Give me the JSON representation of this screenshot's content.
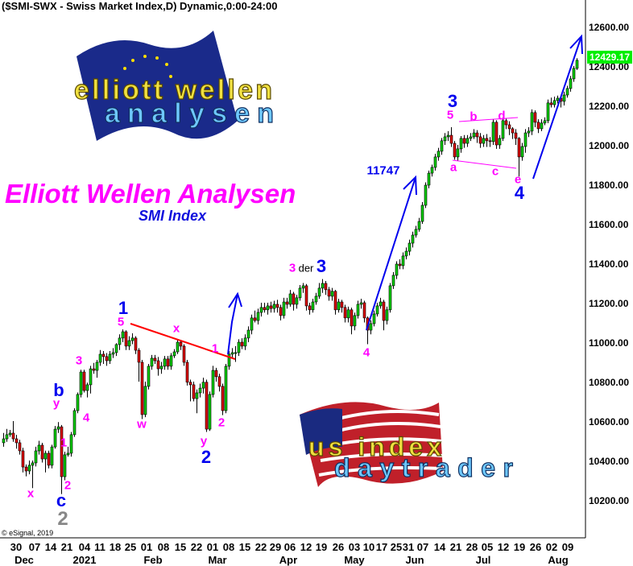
{
  "header": {
    "title": "($SMI-SWX - Swiss Market Index,D) Dynamic,0:00-24:00"
  },
  "footer": {
    "copyright": "© eSignal, 2019"
  },
  "overlay": {
    "headline": "Elliott Wellen Analysen",
    "subheadline": "SMI Index"
  },
  "logos": {
    "top": {
      "line1": "elliott wellen",
      "line2": "analysen"
    },
    "bottom": {
      "line1": "us index",
      "line2": "daytrader"
    }
  },
  "colors": {
    "up": "#00cc00",
    "down": "#dd0000",
    "wave_major": "#0000ee",
    "wave_minor": "#ff00ff",
    "trendline": "#ff0000",
    "last_price_bg": "#00ee00"
  },
  "chart_data": {
    "type": "candlestick",
    "title": "($SMI-SWX - Swiss Market Index,D) Dynamic,0:00-24:00",
    "ylim": [
      10040,
      12735
    ],
    "y_ticks": [
      "12600.00",
      "12400.00",
      "12200.00",
      "12000.00",
      "11800.00",
      "11600.00",
      "11400.00",
      "11200.00",
      "11000.00",
      "10800.00",
      "10600.00",
      "10400.00",
      "10200.00"
    ],
    "last_price": "12429.17",
    "x_ticks": [
      "30",
      "07",
      "14",
      "21",
      "04",
      "11",
      "18",
      "25",
      "01",
      "08",
      "15",
      "22",
      "01",
      "08",
      "15",
      "22",
      "29",
      "06",
      "12",
      "19",
      "26",
      "03",
      "10",
      "17",
      "25",
      "31",
      "07",
      "14",
      "21",
      "28",
      "05",
      "12",
      "19",
      "26",
      "02",
      "09"
    ],
    "x_months": [
      "Dec",
      "2021",
      "Feb",
      "Mar",
      "Apr",
      "May",
      "Jun",
      "Jul",
      "Aug"
    ],
    "ohlc": [
      [
        10490,
        10540,
        10470,
        10510
      ],
      [
        10510,
        10560,
        10495,
        10531
      ],
      [
        10531,
        10555,
        10520,
        10539
      ],
      [
        10539,
        10600,
        10495,
        10510
      ],
      [
        10510,
        10530,
        10460,
        10490
      ],
      [
        10490,
        10505,
        10430,
        10449
      ],
      [
        10449,
        10465,
        10340,
        10367
      ],
      [
        10367,
        10380,
        10320,
        10347
      ],
      [
        10347,
        10400,
        10330,
        10376
      ],
      [
        10376,
        10400,
        10260,
        10388
      ],
      [
        10388,
        10470,
        10370,
        10449
      ],
      [
        10449,
        10500,
        10430,
        10478
      ],
      [
        10478,
        10490,
        10390,
        10408
      ],
      [
        10408,
        10450,
        10340,
        10437
      ],
      [
        10437,
        10450,
        10360,
        10376
      ],
      [
        10376,
        10480,
        10360,
        10469
      ],
      [
        10469,
        10575,
        10460,
        10559
      ],
      [
        10559,
        10595,
        10540,
        10571
      ],
      [
        10571,
        10580,
        10230,
        10318
      ],
      [
        10318,
        10445,
        10300,
        10429
      ],
      [
        10429,
        10470,
        10420,
        10437
      ],
      [
        10437,
        10545,
        10420,
        10531
      ],
      [
        10531,
        10665,
        10520,
        10653
      ],
      [
        10653,
        10745,
        10640,
        10735
      ],
      [
        10735,
        10860,
        10720,
        10849
      ],
      [
        10849,
        10860,
        10745,
        10755
      ],
      [
        10755,
        10795,
        10720,
        10784
      ],
      [
        10784,
        10880,
        10740,
        10865
      ],
      [
        10865,
        10895,
        10840,
        10857
      ],
      [
        10857,
        10910,
        10820,
        10898
      ],
      [
        10898,
        10960,
        10880,
        10939
      ],
      [
        10939,
        10955,
        10890,
        10927
      ],
      [
        10927,
        10945,
        10880,
        10906
      ],
      [
        10906,
        10955,
        10890,
        10939
      ],
      [
        10939,
        10970,
        10920,
        10947
      ],
      [
        10947,
        10995,
        10930,
        10988
      ],
      [
        10988,
        11040,
        10960,
        11021
      ],
      [
        11021,
        11065,
        11000,
        11053
      ],
      [
        11053,
        11060,
        10960,
        10980
      ],
      [
        10980,
        11030,
        10960,
        11008
      ],
      [
        11008,
        11045,
        10990,
        11021
      ],
      [
        11021,
        11030,
        10940,
        10959
      ],
      [
        10959,
        10970,
        10800,
        10898
      ],
      [
        10898,
        10910,
        10610,
        10633
      ],
      [
        10633,
        10800,
        10620,
        10776
      ],
      [
        10776,
        10890,
        10760,
        10878
      ],
      [
        10878,
        10935,
        10860,
        10919
      ],
      [
        10919,
        10935,
        10890,
        10906
      ],
      [
        10906,
        10925,
        10830,
        10865
      ],
      [
        10865,
        10900,
        10840,
        10878
      ],
      [
        10878,
        10930,
        10860,
        10915
      ],
      [
        10915,
        10930,
        10860,
        10878
      ],
      [
        10878,
        10945,
        10860,
        10931
      ],
      [
        10931,
        10965,
        10920,
        10951
      ],
      [
        10951,
        11015,
        10940,
        11000
      ],
      [
        11000,
        11010,
        10960,
        10980
      ],
      [
        10980,
        10990,
        10880,
        10898
      ],
      [
        10898,
        10910,
        10780,
        10797
      ],
      [
        10797,
        10810,
        10700,
        10784
      ],
      [
        10784,
        10800,
        10700,
        10714
      ],
      [
        10714,
        10760,
        10640,
        10743
      ],
      [
        10743,
        10790,
        10720,
        10767
      ],
      [
        10767,
        10820,
        10740,
        10797
      ],
      [
        10797,
        10810,
        10545,
        10559
      ],
      [
        10559,
        10750,
        10550,
        10735
      ],
      [
        10735,
        10880,
        10720,
        10857
      ],
      [
        10857,
        10870,
        10800,
        10825
      ],
      [
        10825,
        10840,
        10750,
        10776
      ],
      [
        10776,
        10790,
        10630,
        10653
      ],
      [
        10653,
        10890,
        10640,
        10878
      ],
      [
        10878,
        10955,
        10860,
        10939
      ],
      [
        10939,
        10970,
        10920,
        10947
      ],
      [
        10947,
        10980,
        10900,
        10947
      ],
      [
        10947,
        11015,
        10930,
        11000
      ],
      [
        11000,
        11020,
        10965,
        10980
      ],
      [
        10980,
        11040,
        10960,
        11021
      ],
      [
        11021,
        11080,
        11000,
        11061
      ],
      [
        11061,
        11140,
        11040,
        11123
      ],
      [
        11123,
        11160,
        11100,
        11110
      ],
      [
        11110,
        11170,
        11090,
        11151
      ],
      [
        11151,
        11200,
        11130,
        11176
      ],
      [
        11176,
        11200,
        11150,
        11164
      ],
      [
        11164,
        11200,
        11140,
        11184
      ],
      [
        11184,
        11205,
        11150,
        11171
      ],
      [
        11171,
        11210,
        11150,
        11192
      ],
      [
        11192,
        11215,
        11150,
        11176
      ],
      [
        11176,
        11190,
        11110,
        11135
      ],
      [
        11135,
        11225,
        11120,
        11204
      ],
      [
        11204,
        11225,
        11170,
        11192
      ],
      [
        11192,
        11265,
        11180,
        11245
      ],
      [
        11245,
        11255,
        11160,
        11192
      ],
      [
        11192,
        11240,
        11170,
        11225
      ],
      [
        11225,
        11290,
        11210,
        11274
      ],
      [
        11274,
        11300,
        11250,
        11286
      ],
      [
        11286,
        11295,
        11160,
        11184
      ],
      [
        11184,
        11200,
        11140,
        11164
      ],
      [
        11164,
        11220,
        11150,
        11204
      ],
      [
        11204,
        11250,
        11190,
        11233
      ],
      [
        11233,
        11300,
        11220,
        11274
      ],
      [
        11274,
        11320,
        11250,
        11298
      ],
      [
        11298,
        11310,
        11240,
        11266
      ],
      [
        11266,
        11280,
        11210,
        11233
      ],
      [
        11233,
        11275,
        11210,
        11258
      ],
      [
        11258,
        11265,
        11140,
        11164
      ],
      [
        11164,
        11220,
        11150,
        11204
      ],
      [
        11204,
        11215,
        11150,
        11176
      ],
      [
        11176,
        11190,
        11100,
        11123
      ],
      [
        11123,
        11180,
        11100,
        11164
      ],
      [
        11164,
        11175,
        11040,
        11082
      ],
      [
        11082,
        11150,
        11060,
        11135
      ],
      [
        11135,
        11210,
        11120,
        11192
      ],
      [
        11192,
        11220,
        11170,
        11200
      ],
      [
        11200,
        11210,
        11100,
        11123
      ],
      [
        11123,
        11130,
        10990,
        11061
      ],
      [
        11061,
        11110,
        11040,
        11094
      ],
      [
        11094,
        11160,
        11080,
        11143
      ],
      [
        11143,
        11200,
        11130,
        11184
      ],
      [
        11184,
        11225,
        11170,
        11204
      ],
      [
        11204,
        11215,
        11060,
        11110
      ],
      [
        11110,
        11180,
        11090,
        11164
      ],
      [
        11164,
        11300,
        11150,
        11286
      ],
      [
        11286,
        11355,
        11270,
        11339
      ],
      [
        11339,
        11410,
        11320,
        11396
      ],
      [
        11396,
        11420,
        11370,
        11388
      ],
      [
        11388,
        11455,
        11370,
        11437
      ],
      [
        11437,
        11480,
        11420,
        11461
      ],
      [
        11461,
        11520,
        11440,
        11502
      ],
      [
        11502,
        11560,
        11480,
        11543
      ],
      [
        11543,
        11590,
        11530,
        11572
      ],
      [
        11572,
        11630,
        11560,
        11612
      ],
      [
        11612,
        11710,
        11600,
        11694
      ],
      [
        11694,
        11810,
        11680,
        11796
      ],
      [
        11796,
        11870,
        11780,
        11857
      ],
      [
        11857,
        11900,
        11840,
        11886
      ],
      [
        11886,
        11955,
        11870,
        11939
      ],
      [
        11939,
        11985,
        11920,
        11968
      ],
      [
        11968,
        12035,
        11950,
        12021
      ],
      [
        12021,
        12060,
        12000,
        12041
      ],
      [
        12041,
        12070,
        12020,
        12049
      ],
      [
        12049,
        12090,
        11990,
        12008
      ],
      [
        12008,
        12020,
        11925,
        11939
      ],
      [
        11939,
        12000,
        11920,
        11980
      ],
      [
        11980,
        12045,
        11960,
        12033
      ],
      [
        12033,
        12050,
        11985,
        12008
      ],
      [
        12008,
        12050,
        11990,
        12033
      ],
      [
        12033,
        12060,
        12020,
        12041
      ],
      [
        12041,
        12080,
        12030,
        12061
      ],
      [
        12061,
        12075,
        12010,
        12041
      ],
      [
        12041,
        12060,
        11985,
        12008
      ],
      [
        12008,
        12050,
        11990,
        12033
      ],
      [
        12033,
        12055,
        11990,
        12021
      ],
      [
        12021,
        12040,
        11990,
        12017
      ],
      [
        12017,
        12130,
        12000,
        12115
      ],
      [
        12115,
        12125,
        11980,
        12000
      ],
      [
        12000,
        12050,
        11980,
        12033
      ],
      [
        12033,
        12140,
        12020,
        12123
      ],
      [
        12123,
        12135,
        12080,
        12102
      ],
      [
        12102,
        12120,
        12050,
        12082
      ],
      [
        12082,
        12090,
        12030,
        12061
      ],
      [
        12061,
        12080,
        12000,
        12033
      ],
      [
        12033,
        12040,
        11840,
        11939
      ],
      [
        11939,
        12010,
        11920,
        11992
      ],
      [
        11992,
        12080,
        11960,
        12061
      ],
      [
        12061,
        12090,
        12040,
        12070
      ],
      [
        12070,
        12180,
        12050,
        12164
      ],
      [
        12164,
        12175,
        12090,
        12115
      ],
      [
        12115,
        12130,
        12060,
        12082
      ],
      [
        12082,
        12130,
        12070,
        12111
      ],
      [
        12111,
        12140,
        12100,
        12123
      ],
      [
        12123,
        12230,
        12110,
        12213
      ],
      [
        12213,
        12240,
        12190,
        12204
      ],
      [
        12204,
        12245,
        12190,
        12225
      ],
      [
        12225,
        12250,
        12210,
        12237
      ],
      [
        12237,
        12250,
        12190,
        12221
      ],
      [
        12221,
        12270,
        12200,
        12253
      ],
      [
        12253,
        12300,
        12240,
        12286
      ],
      [
        12286,
        12350,
        12270,
        12335
      ],
      [
        12335,
        12400,
        12320,
        12388
      ],
      [
        12388,
        12440,
        12380,
        12429.17
      ]
    ],
    "annotations": [
      "x",
      "c",
      "2",
      "2",
      "1",
      "y",
      "b",
      "3",
      "4",
      "1",
      "5",
      "w",
      "x",
      "1",
      "2",
      "y",
      "2",
      "3",
      "der",
      "3",
      "4",
      "11747",
      "3",
      "5",
      "b",
      "d",
      "a",
      "c",
      "e",
      "4"
    ]
  }
}
